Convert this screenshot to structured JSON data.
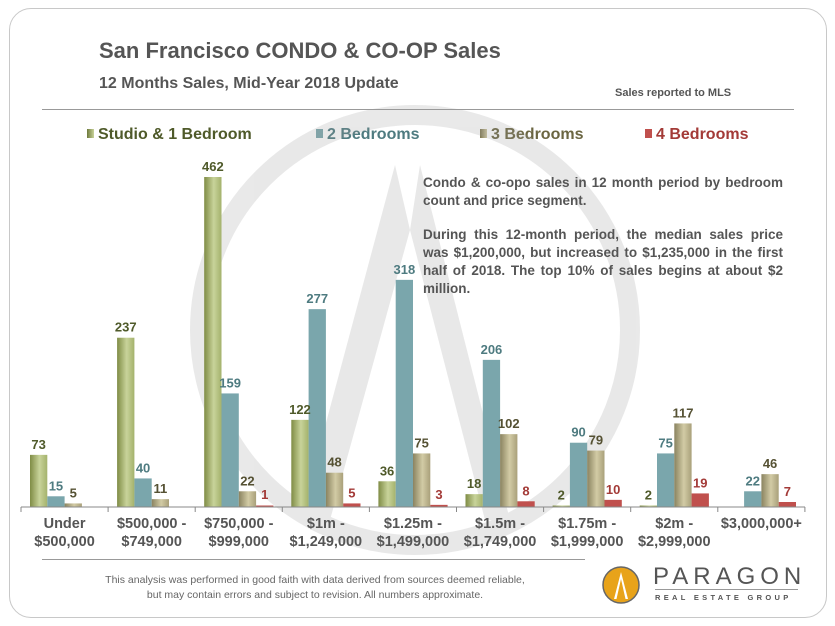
{
  "header": {
    "title": "San Francisco CONDO & CO-OP Sales",
    "subtitle": "12 Months Sales, Mid-Year 2018 Update",
    "note": "Sales reported to MLS"
  },
  "description": [
    "Condo & co-opo sales in 12 month period by bedroom count and price segment.",
    "During this 12-month period, the median sales price was $1,200,000, but increased to $1,235,000 in the first half of 2018. The top 10% of sales begins at about $2 million."
  ],
  "footer": {
    "disclaimer": "This analysis was performed in good faith with data derived from sources deemed reliable, but may contain errors and subject to revision. All numbers approximate.",
    "brand": "PARAGON",
    "brand_sub": "REAL ESTATE GROUP"
  },
  "colors": {
    "studio": "#a4b26c",
    "two_bed": "#7aa6ac",
    "three_bed": "#a9a07a",
    "four_bed": "#c0504d",
    "studio_text": "#4f5a2a",
    "two_bed_text": "#4e7b80",
    "three_bed_text": "#555133",
    "four_bed_text": "#a33a37",
    "logo": "#e8a31a"
  },
  "chart_data": {
    "type": "bar",
    "title": "San Francisco CONDO & CO-OP Sales",
    "subtitle": "12 Months Sales, Mid-Year 2018 Update",
    "xlabel": "",
    "ylabel": "",
    "ylim": [
      0,
      462
    ],
    "grid": false,
    "legend_position": "top",
    "categories": [
      [
        "Under",
        "$500,000"
      ],
      [
        "$500,000 -",
        "$749,000"
      ],
      [
        "$750,000 -",
        "$999,000"
      ],
      [
        "$1m -",
        "$1,249,000"
      ],
      [
        "$1.25m -",
        "$1,499,000"
      ],
      [
        "$1.5m -",
        "$1,749,000"
      ],
      [
        "$1.75m -",
        "$1,999,000"
      ],
      [
        "$2m -",
        "$2,999,000"
      ],
      [
        "$3,000,000+"
      ]
    ],
    "series": [
      {
        "name": "Studio & 1 Bedroom",
        "key": "studio",
        "values": [
          73,
          237,
          462,
          122,
          36,
          18,
          2,
          2,
          null
        ]
      },
      {
        "name": "2 Bedrooms",
        "key": "two_bed",
        "values": [
          15,
          40,
          159,
          277,
          318,
          206,
          90,
          75,
          22
        ]
      },
      {
        "name": "3 Bedrooms",
        "key": "three_bed",
        "values": [
          5,
          11,
          22,
          48,
          75,
          102,
          79,
          117,
          46
        ]
      },
      {
        "name": "4 Bedrooms",
        "key": "four_bed",
        "values": [
          null,
          null,
          1,
          5,
          3,
          8,
          10,
          19,
          7
        ]
      }
    ]
  }
}
